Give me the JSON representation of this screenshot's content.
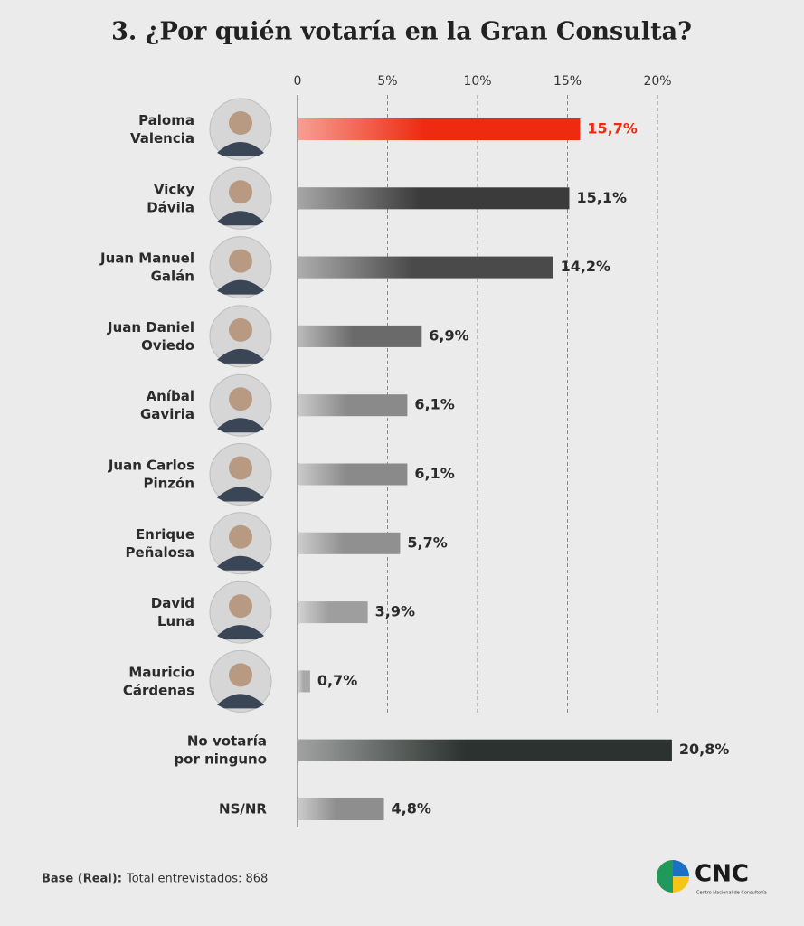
{
  "chart_data": {
    "type": "barh",
    "title": "3. ¿Por quién votaría en la Gran Consulta?",
    "categories": [
      "Paloma\nValencia",
      "Vicky\nDávila",
      "Juan Manuel\nGalán",
      "Juan Daniel\nOviedo",
      "Aníbal\nGaviria",
      "Juan Carlos\nPinzón",
      "Enrique\nPeñalosa",
      "David\nLuna",
      "Mauricio\nCárdenas",
      "No votaría\npor ninguno",
      "NS/NR"
    ],
    "values": [
      15.7,
      15.1,
      14.2,
      6.9,
      6.1,
      6.1,
      5.7,
      3.9,
      0.7,
      20.8,
      4.8
    ],
    "value_labels": [
      "15,7%",
      "15,1%",
      "14,2%",
      "6,9%",
      "6,1%",
      "6,1%",
      "5,7%",
      "3,9%",
      "0,7%",
      "20,8%",
      "4,8%"
    ],
    "colors": [
      "#ee2a10",
      "#3b3b3b",
      "#4a4a4a",
      "#6a6a6a",
      "#8a8a8a",
      "#8a8a8a",
      "#909090",
      "#9e9e9e",
      "#a8a8a8",
      "#2c322f",
      "#8e8e8e"
    ],
    "xlim": [
      0,
      20
    ],
    "xticks": [
      0,
      {
        "value": 5,
        "label": "5%"
      },
      {
        "value": 10,
        "label": "10%"
      },
      {
        "value": 15,
        "label": "15%"
      },
      {
        "value": 20,
        "label": "20%"
      }
    ],
    "grid": true,
    "note_label": "Base (Real):",
    "note_text": "Total entrevistados: 868",
    "logo_text": "CNC",
    "logo_subtitle": "Centro Nacional de Consultoría"
  }
}
